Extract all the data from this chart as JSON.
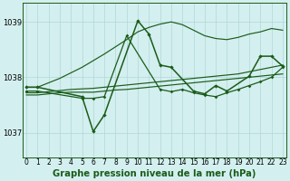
{
  "bg_color": "#d4efef",
  "grid_color": "#b0d8d8",
  "line_color": "#1a5c1a",
  "ylim": [
    1036.55,
    1039.35
  ],
  "xlim": [
    -0.3,
    23.3
  ],
  "yticks": [
    1037,
    1038,
    1039
  ],
  "xticks": [
    0,
    1,
    2,
    3,
    4,
    5,
    6,
    7,
    8,
    9,
    10,
    11,
    12,
    13,
    14,
    15,
    16,
    17,
    18,
    19,
    20,
    21,
    22,
    23
  ],
  "xlabel": "Graphe pression niveau de la mer (hPa)",
  "tick_fontsize": 5.5,
  "xlabel_fontsize": 7.2,
  "line1_x": [
    0,
    1,
    2,
    3,
    4,
    5,
    6,
    7,
    8,
    9,
    10,
    11,
    12,
    13,
    14,
    15,
    16,
    17,
    18,
    19,
    20,
    21,
    22,
    23
  ],
  "line1_y": [
    1037.82,
    1037.82,
    1037.9,
    1037.98,
    1038.08,
    1038.18,
    1038.3,
    1038.42,
    1038.55,
    1038.68,
    1038.82,
    1038.9,
    1038.96,
    1039.0,
    1038.95,
    1038.85,
    1038.75,
    1038.7,
    1038.68,
    1038.72,
    1038.78,
    1038.82,
    1038.88,
    1038.85
  ],
  "line2_x": [
    0,
    1,
    5,
    6,
    7,
    10,
    11,
    12,
    13,
    15,
    16,
    17,
    18,
    20,
    21,
    22,
    23
  ],
  "line2_y": [
    1037.82,
    1037.82,
    1037.65,
    1037.02,
    1037.32,
    1039.02,
    1038.78,
    1038.22,
    1038.18,
    1037.75,
    1037.7,
    1037.85,
    1037.75,
    1038.02,
    1038.38,
    1038.38,
    1038.2
  ],
  "line3_x": [
    0,
    1,
    2,
    3,
    4,
    5,
    6,
    7,
    8,
    9,
    10,
    11,
    12,
    13,
    14,
    15,
    16,
    17,
    18,
    19,
    20,
    21,
    22,
    23
  ],
  "line3_y": [
    1037.68,
    1037.68,
    1037.7,
    1037.72,
    1037.73,
    1037.73,
    1037.73,
    1037.75,
    1037.77,
    1037.78,
    1037.8,
    1037.82,
    1037.84,
    1037.86,
    1037.88,
    1037.9,
    1037.92,
    1037.94,
    1037.96,
    1037.98,
    1038.0,
    1038.02,
    1038.04,
    1038.06
  ],
  "line4_x": [
    0,
    1,
    2,
    3,
    4,
    5,
    6,
    7,
    8,
    9,
    10,
    11,
    12,
    13,
    14,
    15,
    16,
    17,
    18,
    19,
    20,
    21,
    22,
    23
  ],
  "line4_y": [
    1037.72,
    1037.72,
    1037.74,
    1037.76,
    1037.78,
    1037.79,
    1037.8,
    1037.82,
    1037.84,
    1037.86,
    1037.88,
    1037.9,
    1037.92,
    1037.94,
    1037.96,
    1037.98,
    1038.0,
    1038.02,
    1038.04,
    1038.06,
    1038.1,
    1038.14,
    1038.18,
    1038.22
  ],
  "line5_x": [
    0,
    1,
    5,
    6,
    7,
    9,
    12,
    13,
    14,
    15,
    16,
    17,
    18,
    19,
    20,
    21,
    22,
    23
  ],
  "line5_y": [
    1037.75,
    1037.75,
    1037.62,
    1037.62,
    1037.65,
    1038.75,
    1037.78,
    1037.74,
    1037.78,
    1037.72,
    1037.68,
    1037.65,
    1037.72,
    1037.78,
    1037.85,
    1037.92,
    1038.0,
    1038.18
  ]
}
